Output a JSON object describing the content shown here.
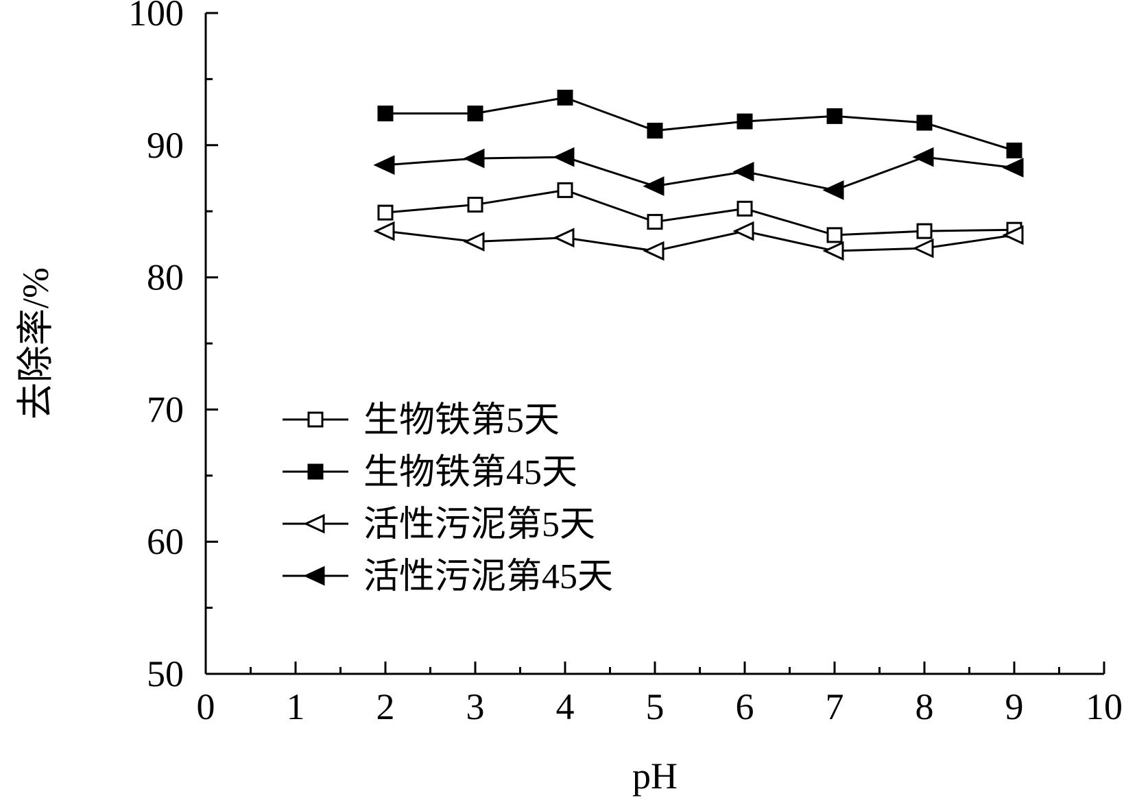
{
  "chart_data": {
    "type": "line",
    "xlabel": "pH",
    "ylabel": "去除率/%",
    "xlim": [
      0,
      10
    ],
    "ylim": [
      50,
      100
    ],
    "x_ticks": [
      0,
      1,
      2,
      3,
      4,
      5,
      6,
      7,
      8,
      9,
      10
    ],
    "y_ticks": [
      50,
      60,
      70,
      80,
      90,
      100
    ],
    "grid": false,
    "legend_position": "center-left",
    "x": [
      2,
      3,
      4,
      5,
      6,
      7,
      8,
      9
    ],
    "series": [
      {
        "name": "生物铁第5天",
        "marker": "square-open",
        "values": [
          84.9,
          85.5,
          86.6,
          84.2,
          85.2,
          83.2,
          83.5,
          83.6
        ]
      },
      {
        "name": "生物铁第45天",
        "marker": "square-filled",
        "values": [
          92.4,
          92.4,
          93.6,
          91.1,
          91.8,
          92.2,
          91.7,
          89.6
        ]
      },
      {
        "name": "活性污泥第5天",
        "marker": "triangle-left-open",
        "values": [
          83.5,
          82.7,
          83.0,
          82.0,
          83.5,
          82.0,
          82.2,
          83.2
        ]
      },
      {
        "name": "活性污泥第45天",
        "marker": "triangle-left-filled",
        "values": [
          88.5,
          89.0,
          89.1,
          86.9,
          88.0,
          86.6,
          89.1,
          88.3
        ]
      }
    ]
  }
}
